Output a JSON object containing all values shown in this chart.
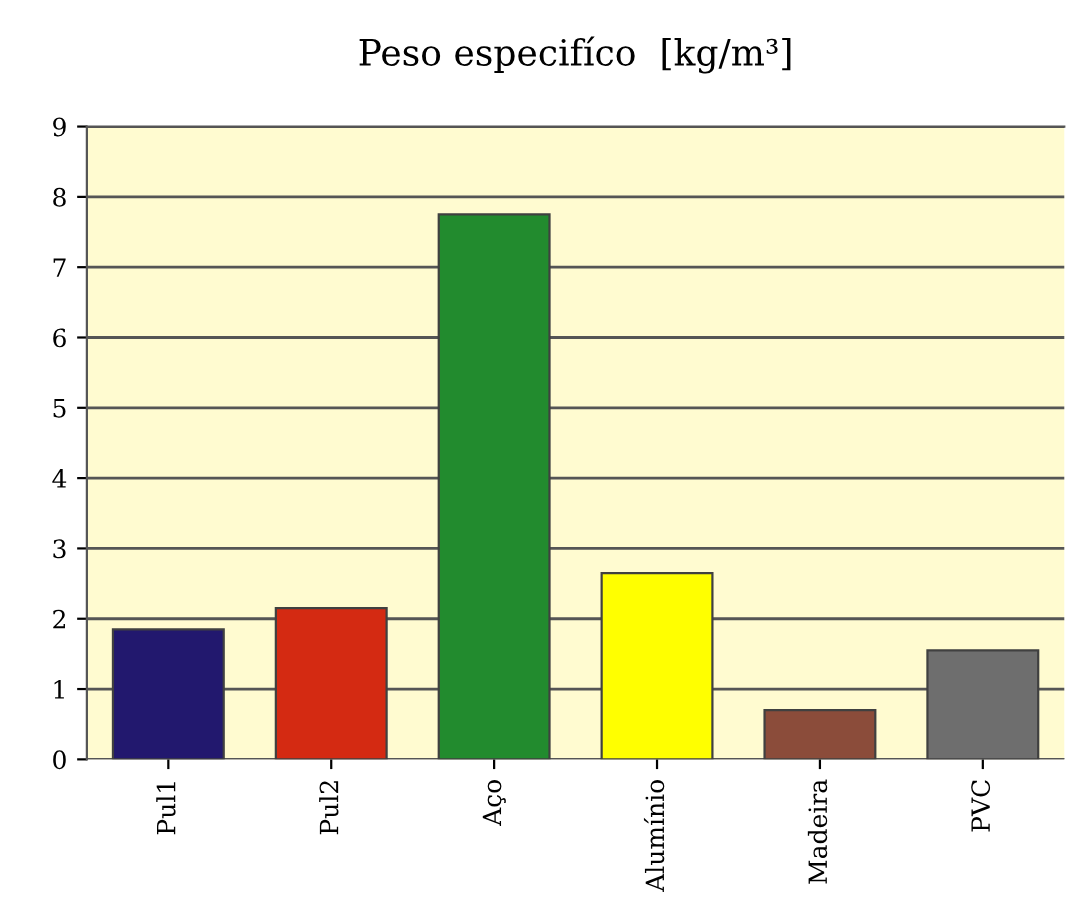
{
  "chart_data": {
    "type": "bar",
    "title": "Peso especifíco  [kg/m³]",
    "categories": [
      "Pul1",
      "Pul2",
      "Aço",
      "Alumínio",
      "Madeira",
      "PVC"
    ],
    "values": [
      1.85,
      2.15,
      7.75,
      2.65,
      0.7,
      1.55
    ],
    "colors": [
      "#22186e",
      "#d42a12",
      "#228b2e",
      "#ffff00",
      "#8b4c3a",
      "#6e6e6e"
    ],
    "ylim": [
      0,
      9
    ],
    "yticks": [
      0,
      1,
      2,
      3,
      4,
      5,
      6,
      7,
      8,
      9
    ],
    "grid": "y",
    "legend": false
  }
}
